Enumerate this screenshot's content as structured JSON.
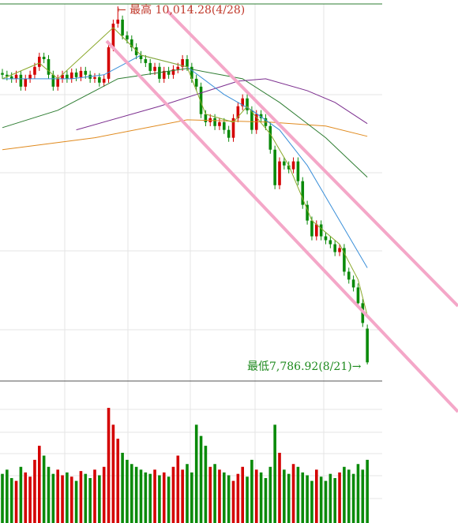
{
  "chart_data": {
    "type": "candlestick",
    "annotations": [
      {
        "text": "← 最高 10,014.28(4/28)",
        "color": "#c0392b"
      },
      {
        "text": "最低7,786.92(8/21)→",
        "color": "#1e8a1e"
      }
    ],
    "ylim": [
      7684,
      10054
    ],
    "up_color": "#d40000",
    "down_color": "#0a8a0a",
    "open": [
      9600,
      9589,
      9579,
      9564,
      9589,
      9515,
      9564,
      9589,
      9638,
      9701,
      9686,
      9589,
      9515,
      9564,
      9589,
      9564,
      9603,
      9574,
      9613,
      9589,
      9564,
      9574,
      9540,
      9564,
      9760,
      9907,
      9932,
      9834,
      9809,
      9760,
      9711,
      9686,
      9662,
      9613,
      9638,
      9564,
      9613,
      9589,
      9623,
      9638,
      9686,
      9638,
      9564,
      9515,
      9344,
      9294,
      9319,
      9270,
      9294,
      9246,
      9197,
      9319,
      9393,
      9442,
      9368,
      9246,
      9344,
      9319,
      9270,
      9123,
      8902,
      9050,
      9025,
      9001,
      9050,
      8927,
      8780,
      8682,
      8584,
      8658,
      8584,
      8560,
      8535,
      8486,
      8511,
      8364,
      8315,
      8266,
      8168,
      8010
    ],
    "high": [
      9625,
      9614,
      9604,
      9614,
      9614,
      9589,
      9614,
      9663,
      9726,
      9726,
      9711,
      9614,
      9589,
      9614,
      9614,
      9628,
      9628,
      9638,
      9638,
      9614,
      9599,
      9599,
      9589,
      9785,
      9932,
      10014.28,
      9957,
      9859,
      9834,
      9785,
      9736,
      9711,
      9687,
      9663,
      9663,
      9638,
      9638,
      9648,
      9663,
      9711,
      9711,
      9663,
      9589,
      9540,
      9369,
      9344,
      9344,
      9319,
      9319,
      9271,
      9344,
      9418,
      9467,
      9467,
      9393,
      9369,
      9369,
      9344,
      9295,
      9148,
      9075,
      9075,
      9050,
      9075,
      9075,
      8952,
      8805,
      8707,
      8683,
      8683,
      8609,
      8585,
      8560,
      8536,
      8536,
      8389,
      8340,
      8291,
      8193,
      8035
    ],
    "low": [
      9564,
      9554,
      9539,
      9539,
      9490,
      9490,
      9539,
      9564,
      9613,
      9661,
      9564,
      9490,
      9490,
      9539,
      9539,
      9539,
      9549,
      9549,
      9564,
      9539,
      9539,
      9515,
      9515,
      9539,
      9735,
      9882,
      9809,
      9784,
      9735,
      9686,
      9661,
      9637,
      9588,
      9588,
      9539,
      9539,
      9564,
      9564,
      9598,
      9613,
      9613,
      9539,
      9490,
      9319,
      9269,
      9269,
      9245,
      9245,
      9221,
      9172,
      9172,
      9294,
      9368,
      9343,
      9221,
      9221,
      9294,
      9245,
      9098,
      8877,
      8877,
      9000,
      8976,
      8976,
      8902,
      8755,
      8657,
      8559,
      8559,
      8559,
      8535,
      8510,
      8461,
      8461,
      8339,
      8290,
      8241,
      8143,
      8020,
      7786.92
    ],
    "close": [
      9589,
      9579,
      9564,
      9589,
      9515,
      9564,
      9589,
      9638,
      9701,
      9686,
      9589,
      9515,
      9564,
      9589,
      9564,
      9603,
      9574,
      9613,
      9589,
      9564,
      9574,
      9540,
      9564,
      9760,
      9907,
      9932,
      9834,
      9809,
      9760,
      9711,
      9686,
      9662,
      9613,
      9638,
      9564,
      9613,
      9589,
      9623,
      9638,
      9686,
      9638,
      9564,
      9515,
      9344,
      9294,
      9319,
      9270,
      9294,
      9246,
      9197,
      9319,
      9393,
      9442,
      9368,
      9246,
      9344,
      9319,
      9270,
      9123,
      8902,
      9050,
      9025,
      9001,
      9050,
      8927,
      8780,
      8682,
      8584,
      8658,
      8584,
      8560,
      8535,
      8486,
      8511,
      8364,
      8315,
      8266,
      8168,
      8045,
      7800
    ],
    "volume": [
      35,
      38,
      32,
      30,
      40,
      36,
      33,
      45,
      55,
      48,
      40,
      35,
      38,
      34,
      36,
      33,
      30,
      37,
      35,
      32,
      38,
      34,
      40,
      82,
      70,
      60,
      50,
      45,
      42,
      40,
      38,
      36,
      35,
      38,
      34,
      36,
      33,
      40,
      48,
      38,
      42,
      36,
      70,
      62,
      55,
      40,
      42,
      38,
      36,
      34,
      30,
      35,
      40,
      33,
      45,
      38,
      36,
      32,
      40,
      70,
      50,
      38,
      35,
      42,
      40,
      36,
      34,
      30,
      38,
      33,
      30,
      35,
      32,
      36,
      40,
      38,
      35,
      42,
      38,
      45
    ],
    "volume_ylim": [
      0,
      100
    ],
    "lines": [
      {
        "color": "#e08a1e",
        "x": [
          0,
          20,
          40,
          58,
          70,
          79
        ],
        "values": [
          9123,
          9197,
          9309,
          9294,
          9270,
          9206
        ]
      },
      {
        "color": "#2e7d32",
        "x": [
          0,
          12,
          25,
          40,
          52,
          60,
          70,
          79
        ],
        "values": [
          9260,
          9368,
          9564,
          9628,
          9564,
          9417,
          9197,
          8952
        ]
      },
      {
        "color": "#7b2d8e",
        "x": [
          16,
          34,
          51,
          57,
          66,
          72,
          79
        ],
        "values": [
          9246,
          9393,
          9549,
          9564,
          9490,
          9417,
          9285
        ]
      },
      {
        "color": "#3a8fd9",
        "x": [
          0,
          15,
          22,
          30,
          40,
          48,
          54,
          60,
          66,
          72,
          79
        ],
        "values": [
          9564,
          9564,
          9589,
          9711,
          9638,
          9466,
          9368,
          9246,
          9025,
          8731,
          8388
        ]
      },
      {
        "color": "#8aa82a",
        "x": [
          0,
          8,
          12,
          24,
          30,
          40,
          44,
          50,
          53,
          58,
          62,
          67,
          73,
          77,
          79
        ],
        "values": [
          9564,
          9662,
          9564,
          9882,
          9711,
          9638,
          9344,
          9294,
          9393,
          9221,
          9025,
          8682,
          8535,
          8315,
          8092
        ]
      }
    ]
  }
}
